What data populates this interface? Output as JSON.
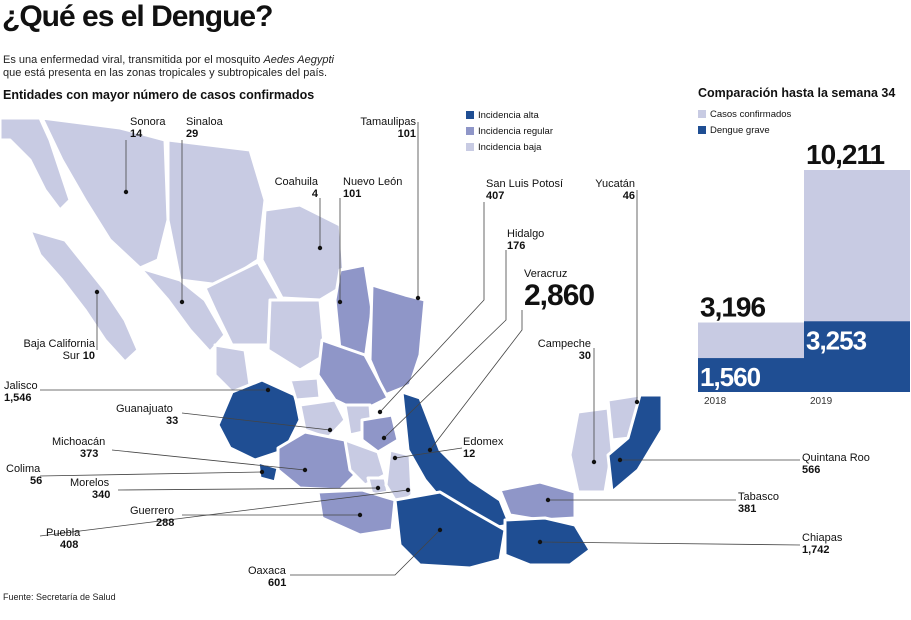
{
  "title": "¿Qué es el Dengue?",
  "intro": {
    "line1_pre": "Es una enfermedad viral, transmitida por el mosquito ",
    "line1_em": "Aedes Aegypti",
    "line2": "que está presenta en las zonas tropicales y subtropicales del país."
  },
  "map_title": "Entidades con mayor número de casos confirmados",
  "legend": [
    {
      "label": "Incidencia alta",
      "color": "#1f4e93"
    },
    {
      "label": "Incidencia regular",
      "color": "#8f96c8"
    },
    {
      "label": "Incidencia baja",
      "color": "#c8cbe3"
    }
  ],
  "states": [
    {
      "name": "Sonora",
      "value": "14"
    },
    {
      "name": "Sinaloa",
      "value": "29"
    },
    {
      "name": "Tamaulipas",
      "value": "101"
    },
    {
      "name": "Coahuila",
      "value": "4"
    },
    {
      "name": "Nuevo León",
      "value": "101"
    },
    {
      "name": "San Luis Potosí",
      "value": "407"
    },
    {
      "name": "Yucatán",
      "value": "46"
    },
    {
      "name": "Hidalgo",
      "value": "176"
    },
    {
      "name": "Veracruz",
      "value": "2,860"
    },
    {
      "name": "Campeche",
      "value": "30"
    },
    {
      "name": "Baja California Sur",
      "line1": "Baja California",
      "line2": "Sur",
      "value": "10"
    },
    {
      "name": "Jalisco",
      "value": "1,546"
    },
    {
      "name": "Guanajuato",
      "value": "33"
    },
    {
      "name": "Michoacán",
      "value": "373"
    },
    {
      "name": "Edomex",
      "value": "12"
    },
    {
      "name": "Colima",
      "value": "56"
    },
    {
      "name": "Morelos",
      "value": "340"
    },
    {
      "name": "Guerrero",
      "value": "288"
    },
    {
      "name": "Puebla",
      "value": "408"
    },
    {
      "name": "Oaxaca",
      "value": "601"
    },
    {
      "name": "Quintana Roo",
      "value": "566"
    },
    {
      "name": "Tabasco",
      "value": "381"
    },
    {
      "name": "Chiapas",
      "value": "1,742"
    }
  ],
  "comparison": {
    "title": "Comparación hasta la semana 34",
    "legend": [
      {
        "label": "Casos confirmados",
        "color": "#c8cbe3"
      },
      {
        "label": "Dengue grave",
        "color": "#1f4e93"
      }
    ]
  },
  "chart_data": {
    "type": "bar",
    "title": "Comparación hasta la semana 34",
    "categories": [
      "2018",
      "2019"
    ],
    "series": [
      {
        "name": "Casos confirmados",
        "values": [
          3196,
          10211
        ],
        "labels": [
          "3,196",
          "10,211"
        ]
      },
      {
        "name": "Dengue grave",
        "values": [
          1560,
          3253
        ],
        "labels": [
          "1,560",
          "3,253"
        ]
      }
    ]
  },
  "source": "Fuente: Secretaría de Salud"
}
